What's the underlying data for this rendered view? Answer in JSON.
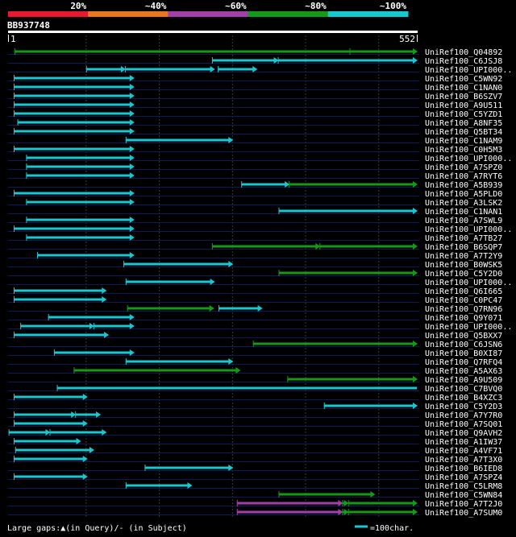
{
  "chart_data": {
    "type": "alignment-overview",
    "query_id": "BB937748",
    "query_start": 1,
    "query_end": 552,
    "identity_legend": [
      {
        "label": "20%",
        "color": "#e8182e"
      },
      {
        "label": "~40%",
        "color": "#e87820"
      },
      {
        "label": "~60%",
        "color": "#a040a8"
      },
      {
        "label": "~80%",
        "color": "#189818"
      },
      {
        "label": "~100%",
        "color": "#18c8d0"
      }
    ],
    "footer_left": "Large gaps:▲(in Query)/- (in Subject)",
    "footer_right": "=100char.",
    "scale_bar_color": "#18c8d0",
    "hits": [
      {
        "name": "UniRef100_Q04892",
        "segs": [
          {
            "s": 2,
            "e": 460,
            "c": "#189818",
            "a": false
          },
          {
            "s": 460,
            "e": 552,
            "c": "#189818",
            "a": true
          }
        ]
      },
      {
        "name": "UniRef100_C6JSJ8",
        "segs": [
          {
            "s": 272,
            "e": 362,
            "c": "#18c8d0",
            "a": true
          },
          {
            "s": 362,
            "e": 552,
            "c": "#18c8d0",
            "a": true
          }
        ]
      },
      {
        "name": "UniRef100_UPI000..",
        "segs": [
          {
            "s": 100,
            "e": 153,
            "c": "#18c8d0",
            "a": true
          },
          {
            "s": 153,
            "e": 275,
            "c": "#18c8d0",
            "a": true
          },
          {
            "s": 280,
            "e": 333,
            "c": "#18c8d0",
            "a": true
          }
        ]
      },
      {
        "name": "UniRef100_C5WN92",
        "segs": [
          {
            "s": 1,
            "e": 165,
            "c": "#18c8d0",
            "a": true
          }
        ]
      },
      {
        "name": "UniRef100_C1NAN0",
        "segs": [
          {
            "s": 1,
            "e": 165,
            "c": "#18c8d0",
            "a": true
          }
        ]
      },
      {
        "name": "UniRef100_B6SZV7",
        "segs": [
          {
            "s": 1,
            "e": 165,
            "c": "#18c8d0",
            "a": true
          }
        ]
      },
      {
        "name": "UniRef100_A9U511",
        "segs": [
          {
            "s": 1,
            "e": 165,
            "c": "#18c8d0",
            "a": true
          }
        ]
      },
      {
        "name": "UniRef100_C5YZD1",
        "segs": [
          {
            "s": 1,
            "e": 165,
            "c": "#18c8d0",
            "a": true
          }
        ]
      },
      {
        "name": "UniRef100_A8NF35",
        "segs": [
          {
            "s": 6,
            "e": 165,
            "c": "#18c8d0",
            "a": true
          }
        ]
      },
      {
        "name": "UniRef100_Q5BT34",
        "segs": [
          {
            "s": 1,
            "e": 165,
            "c": "#18c8d0",
            "a": true
          }
        ]
      },
      {
        "name": "UniRef100_C1NAM9",
        "segs": [
          {
            "s": 154,
            "e": 300,
            "c": "#18c8d0",
            "a": true
          }
        ]
      },
      {
        "name": "UniRef100_C0H5M3",
        "segs": [
          {
            "s": 1,
            "e": 165,
            "c": "#18c8d0",
            "a": true
          }
        ]
      },
      {
        "name": "UniRef100_UPI000..",
        "segs": [
          {
            "s": 18,
            "e": 165,
            "c": "#18c8d0",
            "a": true
          }
        ]
      },
      {
        "name": "UniRef100_A7SPZ0",
        "segs": [
          {
            "s": 18,
            "e": 165,
            "c": "#18c8d0",
            "a": true
          }
        ]
      },
      {
        "name": "UniRef100_A7RYT6",
        "segs": [
          {
            "s": 18,
            "e": 165,
            "c": "#18c8d0",
            "a": true
          }
        ]
      },
      {
        "name": "UniRef100_A5B939",
        "segs": [
          {
            "s": 312,
            "e": 377,
            "c": "#18c8d0",
            "a": true
          },
          {
            "s": 377,
            "e": 552,
            "c": "#189818",
            "a": true
          }
        ]
      },
      {
        "name": "UniRef100_A5PLD0",
        "segs": [
          {
            "s": 1,
            "e": 165,
            "c": "#18c8d0",
            "a": true
          }
        ]
      },
      {
        "name": "UniRef100_A3LSK2",
        "segs": [
          {
            "s": 18,
            "e": 165,
            "c": "#18c8d0",
            "a": true
          }
        ]
      },
      {
        "name": "UniRef100_C1NAN1",
        "segs": [
          {
            "s": 363,
            "e": 552,
            "c": "#18c8d0",
            "a": true
          }
        ]
      },
      {
        "name": "UniRef100_A7SWL9",
        "segs": [
          {
            "s": 18,
            "e": 165,
            "c": "#18c8d0",
            "a": true
          }
        ]
      },
      {
        "name": "UniRef100_UPI000..",
        "segs": [
          {
            "s": 1,
            "e": 165,
            "c": "#18c8d0",
            "a": true
          }
        ]
      },
      {
        "name": "UniRef100_A7TB27",
        "segs": [
          {
            "s": 18,
            "e": 165,
            "c": "#18c8d0",
            "a": true
          }
        ]
      },
      {
        "name": "UniRef100_B6SQP7",
        "segs": [
          {
            "s": 272,
            "e": 419,
            "c": "#189818",
            "a": true
          },
          {
            "s": 419,
            "e": 552,
            "c": "#189818",
            "a": true
          }
        ]
      },
      {
        "name": "UniRef100_A7T2Y9",
        "segs": [
          {
            "s": 33,
            "e": 165,
            "c": "#18c8d0",
            "a": true
          }
        ]
      },
      {
        "name": "UniRef100_B0WSK5",
        "segs": [
          {
            "s": 151,
            "e": 300,
            "c": "#18c8d0",
            "a": true
          }
        ]
      },
      {
        "name": "UniRef100_C5Y2D0",
        "segs": [
          {
            "s": 363,
            "e": 552,
            "c": "#189818",
            "a": true
          }
        ]
      },
      {
        "name": "UniRef100_UPI000..",
        "segs": [
          {
            "s": 154,
            "e": 275,
            "c": "#18c8d0",
            "a": true
          }
        ]
      },
      {
        "name": "UniRef100_Q6I665",
        "segs": [
          {
            "s": 1,
            "e": 127,
            "c": "#18c8d0",
            "a": true
          }
        ]
      },
      {
        "name": "UniRef100_C0PC47",
        "segs": [
          {
            "s": 1,
            "e": 127,
            "c": "#18c8d0",
            "a": true
          }
        ]
      },
      {
        "name": "UniRef100_Q7RN96",
        "segs": [
          {
            "s": 156,
            "e": 274,
            "c": "#189818",
            "a": true
          },
          {
            "s": 281,
            "e": 340,
            "c": "#18c8d0",
            "a": true
          }
        ]
      },
      {
        "name": "UniRef100_Q9Y071",
        "segs": [
          {
            "s": 48,
            "e": 165,
            "c": "#18c8d0",
            "a": true
          }
        ]
      },
      {
        "name": "UniRef100_UPI000..",
        "segs": [
          {
            "s": 10,
            "e": 110,
            "c": "#18c8d0",
            "a": true
          },
          {
            "s": 110,
            "e": 165,
            "c": "#18c8d0",
            "a": true
          }
        ]
      },
      {
        "name": "UniRef100_Q5BXX7",
        "segs": [
          {
            "s": 1,
            "e": 130,
            "c": "#18c8d0",
            "a": true
          }
        ]
      },
      {
        "name": "UniRef100_C6JSN6",
        "segs": [
          {
            "s": 328,
            "e": 552,
            "c": "#189818",
            "a": true
          }
        ]
      },
      {
        "name": "UniRef100_B0XI87",
        "segs": [
          {
            "s": 56,
            "e": 165,
            "c": "#18c8d0",
            "a": true
          }
        ]
      },
      {
        "name": "UniRef100_Q7RFQ4",
        "segs": [
          {
            "s": 154,
            "e": 300,
            "c": "#18c8d0",
            "a": true
          }
        ]
      },
      {
        "name": "UniRef100_A5AX63",
        "segs": [
          {
            "s": 83,
            "e": 310,
            "c": "#189818",
            "a": true
          }
        ]
      },
      {
        "name": "UniRef100_A9U509",
        "segs": [
          {
            "s": 375,
            "e": 552,
            "c": "#189818",
            "a": true
          }
        ]
      },
      {
        "name": "UniRef100_C7BVQ0",
        "segs": [
          {
            "s": 60,
            "e": 552,
            "c": "#18c8d0",
            "a": false
          }
        ]
      },
      {
        "name": "UniRef100_B4XZC3",
        "segs": [
          {
            "s": 1,
            "e": 101,
            "c": "#18c8d0",
            "a": true
          }
        ]
      },
      {
        "name": "UniRef100_C5Y2D3",
        "segs": [
          {
            "s": 425,
            "e": 552,
            "c": "#18c8d0",
            "a": true
          }
        ]
      },
      {
        "name": "UniRef100_A7Y7R0",
        "segs": [
          {
            "s": 1,
            "e": 85,
            "c": "#18c8d0",
            "a": true
          },
          {
            "s": 85,
            "e": 119,
            "c": "#18c8d0",
            "a": true
          }
        ]
      },
      {
        "name": "UniRef100_A7SQ01",
        "segs": [
          {
            "s": 1,
            "e": 101,
            "c": "#18c8d0",
            "a": true
          }
        ]
      },
      {
        "name": "UniRef100_Q9AVH2",
        "segs": [
          {
            "s": -6,
            "e": 50,
            "c": "#18c8d0",
            "a": true
          },
          {
            "s": 50,
            "e": 127,
            "c": "#18c8d0",
            "a": true
          }
        ]
      },
      {
        "name": "UniRef100_A1IW37",
        "segs": [
          {
            "s": 1,
            "e": 92,
            "c": "#18c8d0",
            "a": true
          }
        ]
      },
      {
        "name": "UniRef100_A4VF71",
        "segs": [
          {
            "s": 3,
            "e": 110,
            "c": "#18c8d0",
            "a": true
          }
        ]
      },
      {
        "name": "UniRef100_A7T3X0",
        "segs": [
          {
            "s": 1,
            "e": 101,
            "c": "#18c8d0",
            "a": true
          }
        ]
      },
      {
        "name": "UniRef100_B6IED8",
        "segs": [
          {
            "s": 180,
            "e": 300,
            "c": "#18c8d0",
            "a": true
          }
        ]
      },
      {
        "name": "UniRef100_A7SPZ4",
        "segs": [
          {
            "s": 1,
            "e": 101,
            "c": "#18c8d0",
            "a": true
          }
        ]
      },
      {
        "name": "UniRef100_C5LRM8",
        "segs": [
          {
            "s": 154,
            "e": 244,
            "c": "#18c8d0",
            "a": true
          }
        ]
      },
      {
        "name": "UniRef100_C5WN84",
        "segs": [
          {
            "s": 363,
            "e": 494,
            "c": "#189818",
            "a": true
          }
        ]
      },
      {
        "name": "UniRef100_A7T2J0",
        "segs": [
          {
            "s": 306,
            "e": 450,
            "c": "#a040a8",
            "a": true
          },
          {
            "s": 450,
            "e": 458,
            "c": "#189818",
            "a": true
          },
          {
            "s": 458,
            "e": 552,
            "c": "#189818",
            "a": true
          }
        ]
      },
      {
        "name": "UniRef100_A7SUM0",
        "segs": [
          {
            "s": 306,
            "e": 450,
            "c": "#a040a8",
            "a": true
          },
          {
            "s": 450,
            "e": 458,
            "c": "#189818",
            "a": true
          },
          {
            "s": 458,
            "e": 552,
            "c": "#189818",
            "a": true
          }
        ]
      }
    ]
  }
}
